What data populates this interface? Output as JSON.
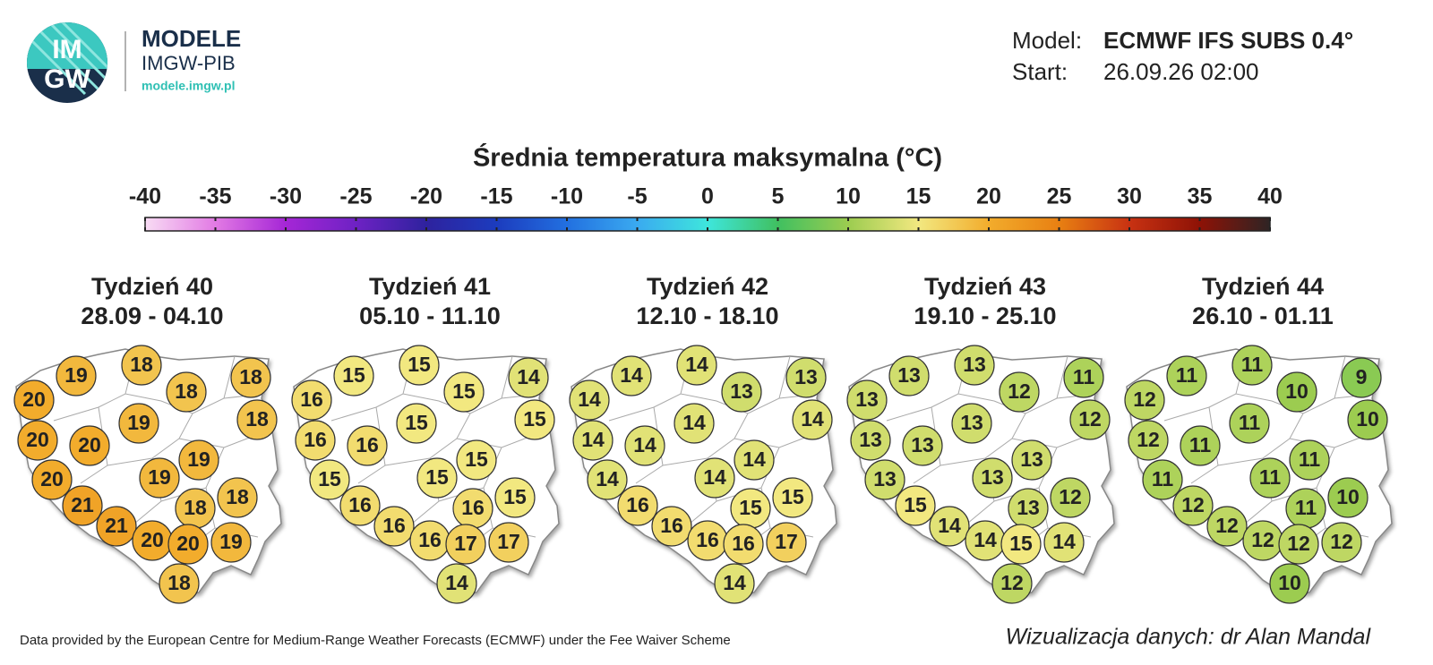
{
  "header": {
    "logo_top": "IM",
    "logo_bottom": "GW",
    "brand": "MODELE",
    "org": "IMGW-PIB",
    "url": "modele.imgw.pl",
    "model_label": "Model:",
    "model": "ECMWF IFS SUBS 0.4°",
    "start_label": "Start:",
    "start": "26.09.26 02:00"
  },
  "chart_data": {
    "type": "map",
    "title": "Średnia temperatura maksymalna (°C)",
    "colorbar": {
      "ticks": [
        -40,
        -35,
        -30,
        -25,
        -20,
        -15,
        -10,
        -5,
        0,
        5,
        10,
        15,
        20,
        25,
        30,
        35,
        40
      ],
      "colors": [
        "#f8dcf4",
        "#e27ae4",
        "#a526d6",
        "#6e22c4",
        "#2e229e",
        "#1c3cbe",
        "#2270e0",
        "#3aaaf0",
        "#3ee6dc",
        "#40c060",
        "#9ccc50",
        "#f2e880",
        "#f2ac2c",
        "#e88012",
        "#c83212",
        "#8e1206",
        "#2e2424"
      ]
    },
    "maps": [
      {
        "title": "Tydzień 40",
        "dates": "28.09 - 04.10",
        "values": [
          19,
          18,
          18,
          18,
          20,
          18,
          19,
          20,
          20,
          19,
          20,
          19,
          18,
          21,
          18,
          21,
          20,
          20,
          19,
          18
        ]
      },
      {
        "title": "Tydzień 41",
        "dates": "05.10 - 11.10",
        "values": [
          15,
          15,
          15,
          14,
          16,
          15,
          15,
          16,
          16,
          15,
          15,
          15,
          15,
          16,
          16,
          16,
          16,
          17,
          17,
          14
        ]
      },
      {
        "title": "Tydzień 42",
        "dates": "12.10 - 18.10",
        "values": [
          14,
          14,
          13,
          13,
          14,
          14,
          14,
          14,
          14,
          14,
          14,
          14,
          15,
          16,
          15,
          16,
          16,
          16,
          17,
          14
        ]
      },
      {
        "title": "Tydzień 43",
        "dates": "19.10 - 25.10",
        "values": [
          13,
          13,
          12,
          11,
          13,
          12,
          13,
          13,
          13,
          13,
          13,
          13,
          12,
          15,
          13,
          14,
          14,
          15,
          14,
          12
        ]
      },
      {
        "title": "Tydzień 44",
        "dates": "26.10 - 01.11",
        "values": [
          11,
          11,
          10,
          9,
          12,
          10,
          11,
          12,
          11,
          11,
          11,
          11,
          10,
          12,
          11,
          12,
          12,
          12,
          12,
          10
        ]
      }
    ]
  },
  "footer": {
    "source": "Data provided by the European Centre for Medium-Range Weather Forecasts (ECMWF) under the Fee Waiver Scheme",
    "credit": "Wizualizacja danych: dr Alan Mandal"
  }
}
